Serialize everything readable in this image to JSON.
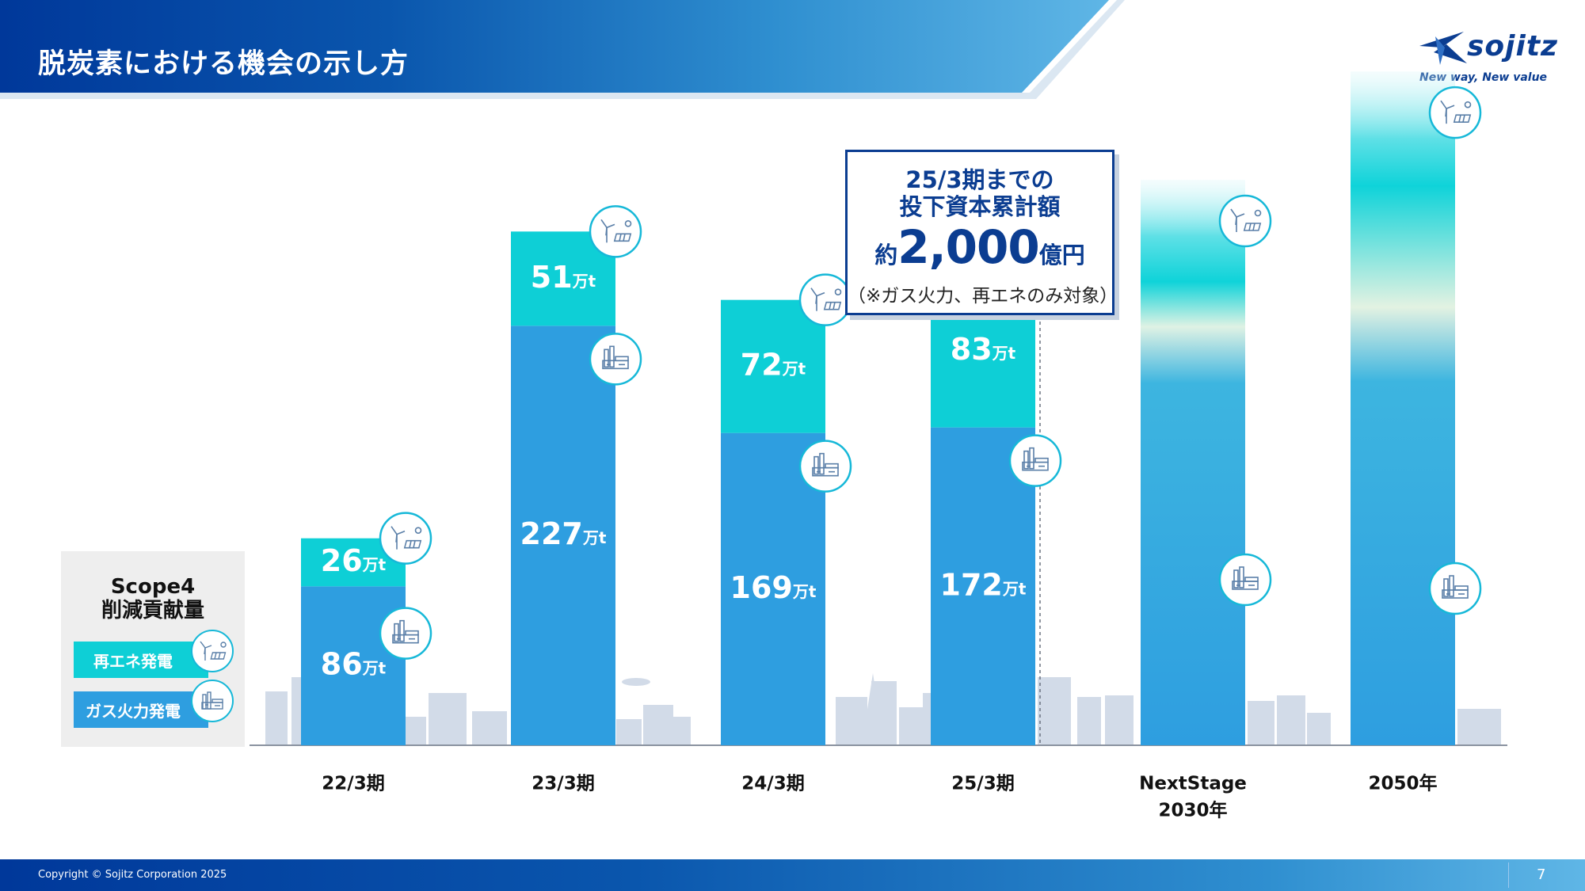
{
  "header": {
    "title": "脱炭素における機会の示し方"
  },
  "logo": {
    "brand": "sojitz",
    "tagline": "New way, New value"
  },
  "legend": {
    "title_line1": "Scope4",
    "title_line2": "削減貢献量",
    "renewable_label": "再エネ発電",
    "gas_label": "ガス火力発電"
  },
  "callout": {
    "line1": "25/3期までの",
    "line2": "投下資本累計額",
    "prefix": "約",
    "amount": "2,000",
    "suffix": "億円",
    "note": "（※ガス火力、再エネのみ対象）"
  },
  "chart_data": {
    "type": "bar",
    "stacked": true,
    "title": "Scope4 削減貢献量",
    "unit": "万t",
    "categories": [
      "22/3期",
      "23/3期",
      "24/3期",
      "25/3期",
      "NextStage 2030年",
      "2050年"
    ],
    "category_lines": [
      [
        "22/3期"
      ],
      [
        "23/3期"
      ],
      [
        "24/3期"
      ],
      [
        "25/3期"
      ],
      [
        "NextStage",
        "2030年"
      ],
      [
        "2050年"
      ]
    ],
    "series": [
      {
        "name": "ガス火力発電",
        "values": [
          86,
          227,
          169,
          172,
          null,
          null
        ],
        "labels": [
          "86",
          "227",
          "169",
          "172",
          "",
          ""
        ]
      },
      {
        "name": "再エネ発電",
        "values": [
          26,
          51,
          72,
          83,
          null,
          null
        ],
        "labels": [
          "26",
          "51",
          "72",
          "83",
          "",
          ""
        ]
      }
    ],
    "projection_relative_height": {
      "NextStage 2030年": 1.2,
      "2050年": 1.43
    },
    "ylim": [
      0,
      300
    ],
    "colors": {
      "gas": "#2e9ee0",
      "renewable": "#0ecfd6",
      "city": "#d2dbe8"
    }
  },
  "footer": {
    "copyright": "Copyright © Sojitz Corporation 2025",
    "page_number": "7"
  }
}
